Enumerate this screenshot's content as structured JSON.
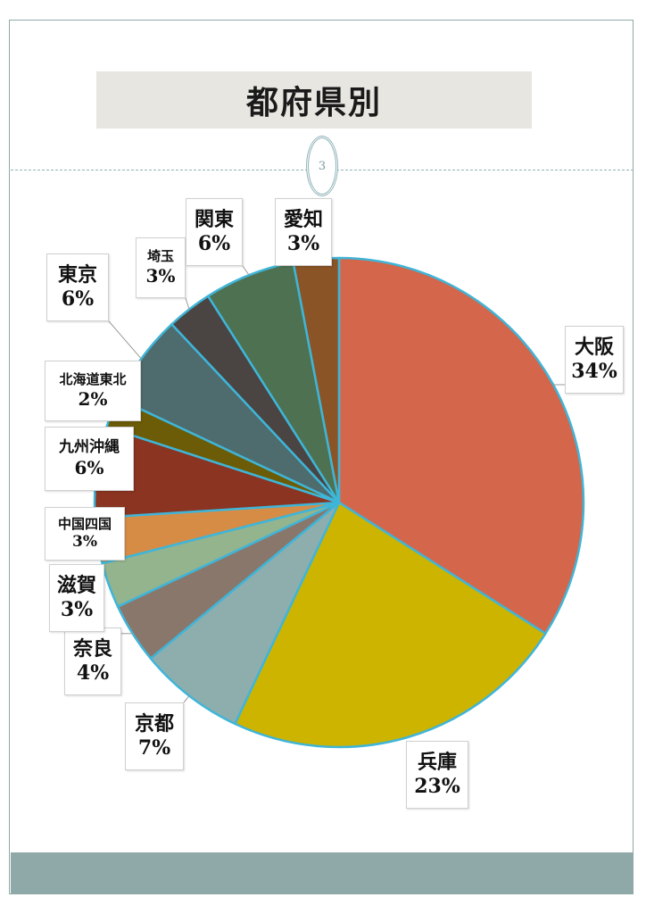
{
  "page": {
    "title": "都府県別",
    "page_number": "3"
  },
  "colors": {
    "title_bg": "#e8e6e1",
    "footer_band": "#8ea9a7",
    "slice_border": "#3fb5d8"
  },
  "chart_data": {
    "type": "pie",
    "title": "",
    "slices": [
      {
        "name": "大阪",
        "value": 34,
        "label": "34%",
        "color": "#d4664b"
      },
      {
        "name": "兵庫",
        "value": 23,
        "label": "23%",
        "color": "#cdb400"
      },
      {
        "name": "京都",
        "value": 7,
        "label": "7%",
        "color": "#8eaeae"
      },
      {
        "name": "奈良",
        "value": 4,
        "label": "4%",
        "color": "#8a776c"
      },
      {
        "name": "滋賀",
        "value": 3,
        "label": "3%",
        "color": "#94b48e"
      },
      {
        "name": "中国四国",
        "value": 3,
        "label": "3%",
        "color": "#d78c45"
      },
      {
        "name": "九州沖縄",
        "value": 6,
        "label": "6%",
        "color": "#8a3421"
      },
      {
        "name": "北海道東北",
        "value": 2,
        "label": "2%",
        "color": "#6c5c08"
      },
      {
        "name": "東京",
        "value": 6,
        "label": "6%",
        "color": "#4e6b6e"
      },
      {
        "name": "埼玉",
        "value": 3,
        "label": "3%",
        "color": "#4a4442"
      },
      {
        "name": "関東",
        "value": 6,
        "label": "6%",
        "color": "#4e7152"
      },
      {
        "name": "愛知",
        "value": 3,
        "label": "3%",
        "color": "#8a5426"
      }
    ]
  }
}
